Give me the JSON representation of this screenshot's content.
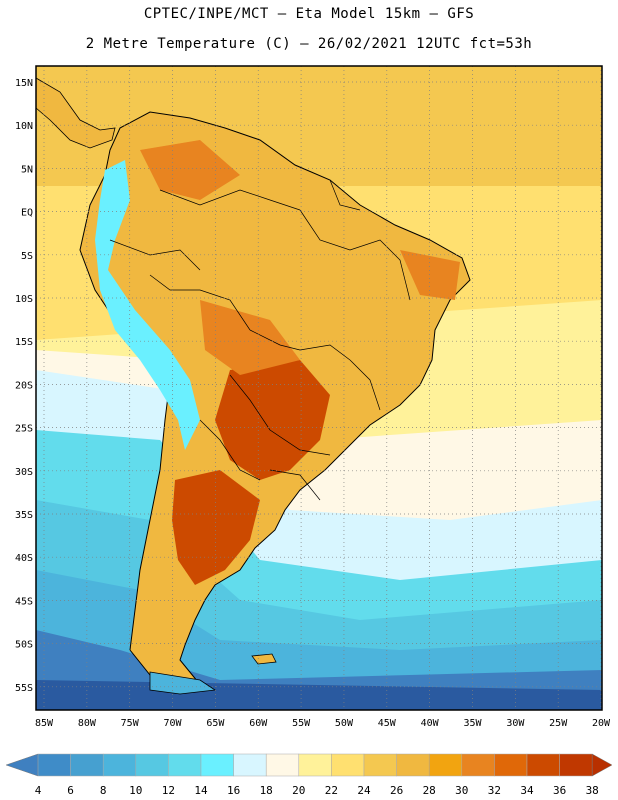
{
  "header": {
    "line1": "CPTEC/INPE/MCT –  Eta Model 15km – GFS",
    "line2": "2 Metre Temperature (C) – 26/02/2021 12UTC fct=53h"
  },
  "axes": {
    "lon_labels": [
      "85W",
      "80W",
      "75W",
      "70W",
      "65W",
      "60W",
      "55W",
      "50W",
      "45W",
      "40W",
      "35W",
      "30W",
      "25W",
      "20W"
    ],
    "lat_labels": [
      "15N",
      "10N",
      "5N",
      "EQ",
      "5S",
      "10S",
      "15S",
      "20S",
      "25S",
      "30S",
      "35S",
      "40S",
      "45S",
      "50S",
      "55S"
    ]
  },
  "colorbar": {
    "labels": [
      "4",
      "6",
      "8",
      "10",
      "12",
      "14",
      "16",
      "18",
      "20",
      "22",
      "24",
      "26",
      "28",
      "30",
      "32",
      "34",
      "36",
      "38"
    ],
    "colors": [
      "#3f80c0",
      "#3f8cc8",
      "#46a0d0",
      "#4cb4dc",
      "#56c8e2",
      "#62dcec",
      "#6af0ff",
      "#d8f6ff",
      "#fff8e6",
      "#fff29a",
      "#ffe070",
      "#f4c850",
      "#f0b840",
      "#f2a410",
      "#e88420",
      "#e06808",
      "#cc4a00",
      "#c03800",
      "#b83000"
    ]
  },
  "map_colors": {
    "ocean_cold_deep": "#2a5aa0",
    "ocean_cold": "#3f80c0",
    "ocean_mid": "#4cb4dc",
    "ocean_cool": "#62dcec",
    "ocean_light": "#d8f6ff",
    "ocean_cream": "#fff8e6",
    "ocean_warm": "#ffe070",
    "ocean_warmer": "#f4c850",
    "land_warm": "#f0b840",
    "land_hot": "#e88420",
    "land_hotter": "#cc4a00",
    "andes": "#6af0ff"
  }
}
